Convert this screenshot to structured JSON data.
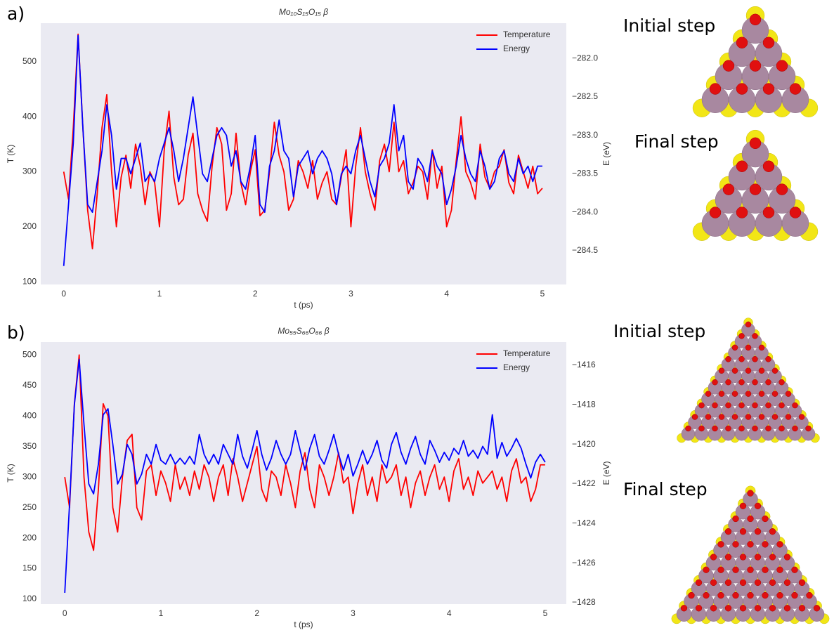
{
  "chart_data": [
    {
      "type": "line",
      "panel_label": "a)",
      "title": "Mo₁₀S₁₅O₁₅ β",
      "xlabel": "t (ps)",
      "ylabel": "T (K)",
      "y2label": "E (eV)",
      "structure_labels": [
        "Initial step",
        "Final step"
      ],
      "xlim": [
        -0.24,
        5.25
      ],
      "xticks": [
        0,
        1,
        2,
        3,
        4,
        5
      ],
      "ylim": [
        95,
        570
      ],
      "yticks": [
        100,
        200,
        300,
        400,
        500
      ],
      "y2lim": [
        -284.94,
        -281.54
      ],
      "y2ticks": [
        {
          "value": -284.5,
          "label": "−284.5"
        },
        {
          "value": -284.0,
          "label": "−284.0"
        },
        {
          "value": -283.5,
          "label": "−283.5"
        },
        {
          "value": -283.0,
          "label": "−283.0"
        },
        {
          "value": -282.5,
          "label": "−282.5"
        },
        {
          "value": -282.0,
          "label": "−282.0"
        }
      ],
      "grid": false,
      "legend": "upper right",
      "x": [
        0,
        0.05,
        0.1,
        0.15,
        0.2,
        0.25,
        0.3,
        0.35,
        0.4,
        0.45,
        0.5,
        0.55,
        0.6,
        0.65,
        0.7,
        0.75,
        0.8,
        0.85,
        0.9,
        0.95,
        1.0,
        1.05,
        1.1,
        1.15,
        1.2,
        1.25,
        1.3,
        1.35,
        1.4,
        1.45,
        1.5,
        1.55,
        1.6,
        1.65,
        1.7,
        1.75,
        1.8,
        1.85,
        1.9,
        1.95,
        2.0,
        2.05,
        2.1,
        2.15,
        2.2,
        2.25,
        2.3,
        2.35,
        2.4,
        2.45,
        2.5,
        2.55,
        2.6,
        2.65,
        2.7,
        2.75,
        2.8,
        2.85,
        2.9,
        2.95,
        3.0,
        3.05,
        3.1,
        3.15,
        3.2,
        3.25,
        3.3,
        3.35,
        3.4,
        3.45,
        3.5,
        3.55,
        3.6,
        3.65,
        3.7,
        3.75,
        3.8,
        3.85,
        3.9,
        3.95,
        4.0,
        4.05,
        4.1,
        4.15,
        4.2,
        4.25,
        4.3,
        4.35,
        4.4,
        4.45,
        4.5,
        4.55,
        4.6,
        4.65,
        4.7,
        4.75,
        4.8,
        4.85,
        4.9,
        4.95,
        5.0
      ],
      "series": [
        {
          "name": "Temperature",
          "color": "#ff0000",
          "axis": "y",
          "values": [
            300,
            250,
            380,
            550,
            380,
            230,
            160,
            260,
            380,
            440,
            300,
            200,
            290,
            330,
            270,
            350,
            310,
            240,
            300,
            280,
            200,
            340,
            410,
            290,
            240,
            250,
            330,
            370,
            260,
            230,
            210,
            310,
            380,
            350,
            230,
            260,
            370,
            280,
            240,
            300,
            340,
            220,
            230,
            300,
            390,
            330,
            300,
            230,
            250,
            320,
            300,
            270,
            320,
            250,
            280,
            300,
            250,
            240,
            290,
            340,
            200,
            310,
            380,
            300,
            260,
            230,
            320,
            350,
            300,
            390,
            300,
            320,
            260,
            280,
            310,
            300,
            250,
            340,
            270,
            310,
            200,
            230,
            320,
            400,
            300,
            280,
            250,
            350,
            290,
            270,
            300,
            310,
            340,
            280,
            260,
            330,
            300,
            270,
            310,
            260,
            270
          ]
        },
        {
          "name": "Energy",
          "color": "#0000ff",
          "axis": "y2",
          "values": [
            -284.7,
            -283.9,
            -283.1,
            -281.7,
            -282.9,
            -283.9,
            -284.0,
            -283.6,
            -283.2,
            -282.6,
            -283.0,
            -283.7,
            -283.3,
            -283.3,
            -283.5,
            -283.3,
            -283.1,
            -283.6,
            -283.5,
            -283.6,
            -283.3,
            -283.1,
            -282.9,
            -283.2,
            -283.6,
            -283.3,
            -282.9,
            -282.5,
            -283.0,
            -283.5,
            -283.6,
            -283.3,
            -283.0,
            -282.9,
            -283.0,
            -283.4,
            -283.2,
            -283.6,
            -283.7,
            -283.4,
            -283.0,
            -283.9,
            -284.0,
            -283.4,
            -283.2,
            -282.8,
            -283.2,
            -283.3,
            -283.8,
            -283.4,
            -283.3,
            -283.2,
            -283.5,
            -283.3,
            -283.2,
            -283.3,
            -283.5,
            -283.9,
            -283.5,
            -283.4,
            -283.5,
            -283.2,
            -283.0,
            -283.3,
            -283.6,
            -283.8,
            -283.4,
            -283.3,
            -283.1,
            -282.6,
            -283.2,
            -283.0,
            -283.6,
            -283.7,
            -283.3,
            -283.4,
            -283.6,
            -283.2,
            -283.4,
            -283.5,
            -283.9,
            -283.7,
            -283.4,
            -283.0,
            -283.3,
            -283.5,
            -283.6,
            -283.2,
            -283.4,
            -283.7,
            -283.6,
            -283.3,
            -283.2,
            -283.5,
            -283.6,
            -283.3,
            -283.5,
            -283.4,
            -283.6,
            -283.4,
            -283.4
          ]
        }
      ]
    },
    {
      "type": "line",
      "panel_label": "b)",
      "title": "Mo₅₅S₆₆O₆₆ β",
      "xlabel": "t (ps)",
      "ylabel": "T (K)",
      "y2label": "E (eV)",
      "structure_labels": [
        "Initial step",
        "Final step"
      ],
      "xlim": [
        -0.25,
        5.22
      ],
      "xticks": [
        0,
        1,
        2,
        3,
        4,
        5
      ],
      "ylim": [
        92,
        521
      ],
      "yticks": [
        100,
        150,
        200,
        250,
        300,
        350,
        400,
        450,
        500
      ],
      "y2lim": [
        -1428.07,
        -1414.83
      ],
      "y2ticks": [
        {
          "value": -1428,
          "label": "−1428"
        },
        {
          "value": -1426,
          "label": "−1426"
        },
        {
          "value": -1424,
          "label": "−1424"
        },
        {
          "value": -1422,
          "label": "−1422"
        },
        {
          "value": -1420,
          "label": "−1420"
        },
        {
          "value": -1418,
          "label": "−1418"
        },
        {
          "value": -1416,
          "label": "−1416"
        }
      ],
      "grid": false,
      "legend": "upper right",
      "x": [
        0,
        0.05,
        0.1,
        0.15,
        0.2,
        0.25,
        0.3,
        0.35,
        0.4,
        0.45,
        0.5,
        0.55,
        0.6,
        0.65,
        0.7,
        0.75,
        0.8,
        0.85,
        0.9,
        0.95,
        1.0,
        1.05,
        1.1,
        1.15,
        1.2,
        1.25,
        1.3,
        1.35,
        1.4,
        1.45,
        1.5,
        1.55,
        1.6,
        1.65,
        1.7,
        1.75,
        1.8,
        1.85,
        1.9,
        1.95,
        2.0,
        2.05,
        2.1,
        2.15,
        2.2,
        2.25,
        2.3,
        2.35,
        2.4,
        2.45,
        2.5,
        2.55,
        2.6,
        2.65,
        2.7,
        2.75,
        2.8,
        2.85,
        2.9,
        2.95,
        3.0,
        3.05,
        3.1,
        3.15,
        3.2,
        3.25,
        3.3,
        3.35,
        3.4,
        3.45,
        3.5,
        3.55,
        3.6,
        3.65,
        3.7,
        3.75,
        3.8,
        3.85,
        3.9,
        3.95,
        4.0,
        4.05,
        4.1,
        4.15,
        4.2,
        4.25,
        4.3,
        4.35,
        4.4,
        4.45,
        4.5,
        4.55,
        4.6,
        4.65,
        4.7,
        4.75,
        4.8,
        4.85,
        4.9,
        4.95,
        5.0
      ],
      "series": [
        {
          "name": "Temperature",
          "color": "#ff0000",
          "axis": "y",
          "values": [
            300,
            250,
            420,
            500,
            300,
            210,
            180,
            280,
            420,
            400,
            250,
            210,
            300,
            360,
            370,
            250,
            230,
            310,
            320,
            270,
            310,
            290,
            260,
            320,
            280,
            300,
            270,
            310,
            280,
            320,
            300,
            260,
            300,
            320,
            270,
            330,
            300,
            260,
            290,
            320,
            350,
            280,
            260,
            310,
            300,
            270,
            320,
            290,
            250,
            310,
            340,
            280,
            250,
            320,
            300,
            270,
            300,
            340,
            290,
            300,
            240,
            290,
            320,
            270,
            300,
            260,
            320,
            290,
            300,
            320,
            270,
            300,
            250,
            290,
            310,
            270,
            300,
            320,
            280,
            300,
            260,
            310,
            330,
            280,
            300,
            270,
            310,
            290,
            300,
            310,
            280,
            300,
            260,
            310,
            330,
            290,
            300,
            260,
            280,
            320,
            320
          ]
        },
        {
          "name": "Energy",
          "color": "#0000ff",
          "axis": "y2",
          "values": [
            -1427.5,
            -1423,
            -1418,
            -1415.7,
            -1419,
            -1422,
            -1422.5,
            -1421,
            -1418.5,
            -1418.2,
            -1420,
            -1422,
            -1421.5,
            -1420,
            -1420.5,
            -1422,
            -1421.5,
            -1420.5,
            -1421,
            -1420,
            -1420.8,
            -1421,
            -1420.5,
            -1421,
            -1420.7,
            -1421,
            -1420.6,
            -1421,
            -1419.5,
            -1420.5,
            -1421,
            -1420.5,
            -1421,
            -1420,
            -1420.5,
            -1421,
            -1419.5,
            -1420.6,
            -1421.2,
            -1420.3,
            -1419.3,
            -1420.5,
            -1421.3,
            -1420.7,
            -1419.8,
            -1420.5,
            -1421,
            -1420.5,
            -1419.3,
            -1420.3,
            -1421.3,
            -1420.2,
            -1419.5,
            -1420.6,
            -1421,
            -1420.3,
            -1419.5,
            -1420.5,
            -1421.3,
            -1420.5,
            -1421.6,
            -1421,
            -1420.3,
            -1421,
            -1420.5,
            -1419.8,
            -1420.8,
            -1421.2,
            -1420,
            -1419.4,
            -1420.4,
            -1421,
            -1420.2,
            -1419.6,
            -1420.5,
            -1421,
            -1419.8,
            -1420.3,
            -1420.9,
            -1420.4,
            -1420.8,
            -1420.2,
            -1420.5,
            -1419.8,
            -1420.6,
            -1420.3,
            -1420.7,
            -1420.1,
            -1420.5,
            -1418.5,
            -1420.7,
            -1419.9,
            -1420.6,
            -1420.2,
            -1419.7,
            -1420.2,
            -1421,
            -1421.7,
            -1420.9,
            -1420.5,
            -1420.9
          ]
        }
      ]
    }
  ]
}
